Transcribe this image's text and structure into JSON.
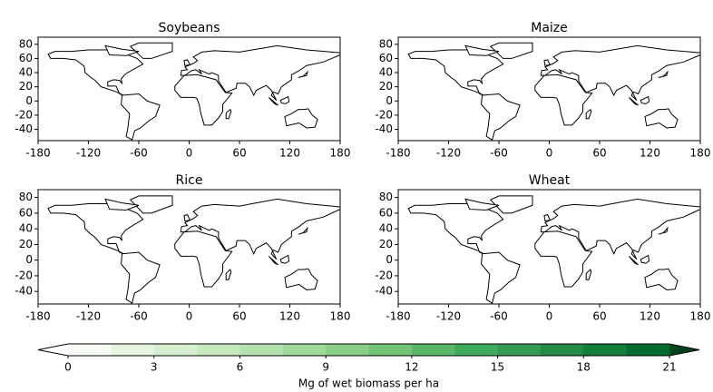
{
  "chart_data": [
    {
      "type": "map",
      "title": "Soybeans",
      "xlim": [
        -180,
        180
      ],
      "ylim": [
        -56,
        90
      ],
      "xticks": [
        -180,
        -120,
        -60,
        0,
        60,
        120,
        180
      ],
      "yticks": [
        -40,
        -20,
        0,
        20,
        40,
        60,
        80
      ]
    },
    {
      "type": "map",
      "title": "Maize",
      "xlim": [
        -180,
        180
      ],
      "ylim": [
        -56,
        90
      ],
      "xticks": [
        -180,
        -120,
        -60,
        0,
        60,
        120,
        180
      ],
      "yticks": [
        -40,
        -20,
        0,
        20,
        40,
        60,
        80
      ]
    },
    {
      "type": "map",
      "title": "Rice",
      "xlim": [
        -180,
        180
      ],
      "ylim": [
        -56,
        90
      ],
      "xticks": [
        -180,
        -120,
        -60,
        0,
        60,
        120,
        180
      ],
      "yticks": [
        -40,
        -20,
        0,
        20,
        40,
        60,
        80
      ]
    },
    {
      "type": "map",
      "title": "Wheat",
      "xlim": [
        -180,
        180
      ],
      "ylim": [
        -56,
        90
      ],
      "xticks": [
        -180,
        -120,
        -60,
        0,
        60,
        120,
        180
      ],
      "yticks": [
        -40,
        -20,
        0,
        20,
        40,
        60,
        80
      ]
    },
    {
      "type": "colorbar",
      "label": "Mg of wet biomass per ha",
      "xlim": [
        0,
        21
      ],
      "bounds": [
        0,
        1.5,
        3,
        4.5,
        6,
        7.5,
        9,
        10.5,
        12,
        13.5,
        15,
        16.5,
        18,
        19.5,
        21
      ],
      "colors": [
        "#f7fcf5",
        "#e5f5e0",
        "#d6efd0",
        "#c7e9c0",
        "#b4e1ad",
        "#a1d99b",
        "#8ace88",
        "#74c476",
        "#5ab769",
        "#41ab5d",
        "#329b51",
        "#238b45",
        "#147e3a",
        "#006d2c"
      ],
      "extend_colors": [
        "#ffffff",
        "#00441b"
      ],
      "xticks": [
        0,
        3,
        6,
        9,
        12,
        15,
        18,
        21
      ]
    }
  ]
}
